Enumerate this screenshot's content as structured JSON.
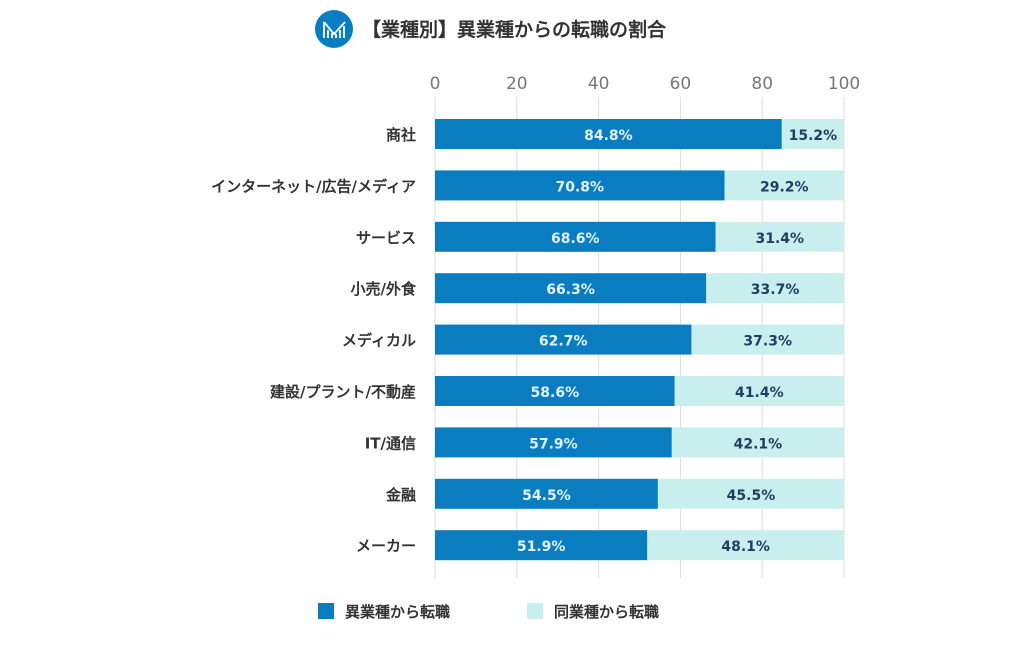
{
  "chart_data": {
    "type": "bar",
    "orientation": "horizontal",
    "stacked": true,
    "title": "【業種別】異業種からの転職の割合",
    "categories": [
      "商社",
      "インターネット/広告/メディア",
      "サービス",
      "小売/外食",
      "メディカル",
      "建設/プラント/不動産",
      "IT/通信",
      "金融",
      "メーカー"
    ],
    "series": [
      {
        "name": "異業種から転職",
        "values": [
          84.8,
          70.8,
          68.6,
          66.3,
          62.7,
          58.6,
          57.9,
          54.5,
          51.9
        ],
        "color": "#0a7dc1"
      },
      {
        "name": "同業種から転職",
        "values": [
          15.2,
          29.2,
          31.4,
          33.7,
          37.3,
          41.4,
          42.1,
          45.5,
          48.1
        ],
        "color": "#c9eeee"
      }
    ],
    "xlim": [
      0,
      100
    ],
    "xticks": [
      "0",
      "20",
      "40",
      "60",
      "80",
      "100"
    ],
    "grid": true,
    "legend_position": "bottom",
    "label_suffix": "%",
    "icon": "chart-icon"
  }
}
